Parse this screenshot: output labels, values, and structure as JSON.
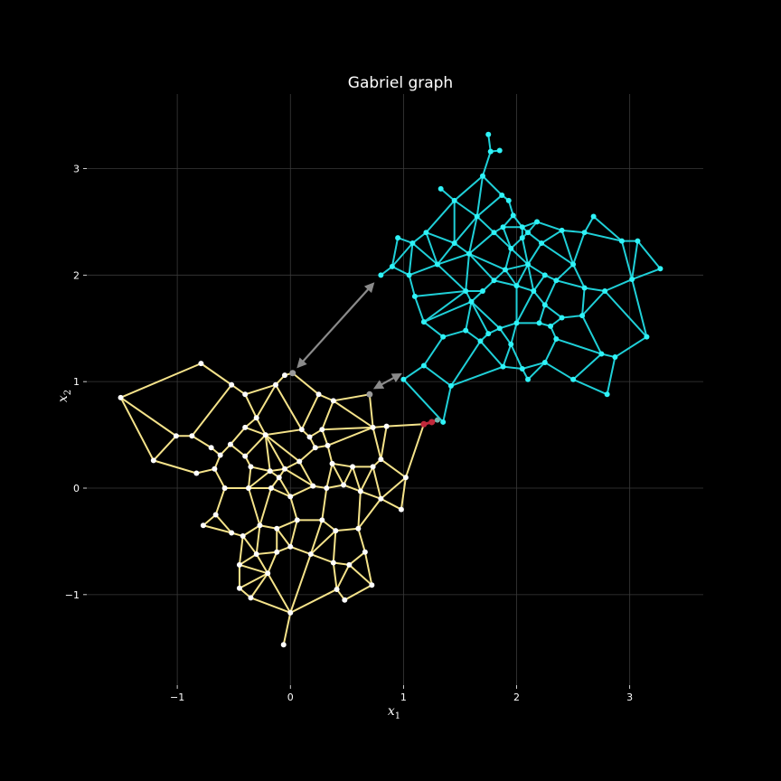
{
  "chart_data": {
    "type": "scatter",
    "title": "Gabriel graph",
    "xlabel": "x",
    "xlabel_sub": "1",
    "ylabel": "x",
    "ylabel_sub": "2",
    "xlim": [
      -1.8,
      3.65
    ],
    "ylim": [
      -1.85,
      3.7
    ],
    "xticks": [
      -1,
      0,
      1,
      2,
      3
    ],
    "xtick_labels": [
      "−1",
      "0",
      "1",
      "2",
      "3"
    ],
    "yticks": [
      -1,
      0,
      1,
      2,
      3
    ],
    "ytick_labels": [
      "−1",
      "0",
      "1",
      "2",
      "3"
    ],
    "grid": true,
    "colors": {
      "background": "#000000",
      "grid": "#3a3a3a",
      "cluster_a_edges": "#f5e38a",
      "cluster_a_nodes": "#ffffff",
      "cluster_b_edges": "#1fd0d8",
      "cluster_b_nodes": "#2ff3f8",
      "arrows": "#8a8a8a",
      "bridge": "#c0283a"
    },
    "series": [
      {
        "color": "#ffffff",
        "edge_color": "#f5e38a",
        "points": [
          [
            -1.5,
            0.85
          ],
          [
            -0.79,
            1.17
          ],
          [
            -1.01,
            0.49
          ],
          [
            -1.21,
            0.26
          ],
          [
            -0.87,
            0.49
          ],
          [
            -0.52,
            0.97
          ],
          [
            -0.4,
            0.88
          ],
          [
            -0.13,
            0.97
          ],
          [
            0.02,
            1.08
          ],
          [
            -0.05,
            1.06
          ],
          [
            0.25,
            0.88
          ],
          [
            0.38,
            0.82
          ],
          [
            0.7,
            0.88
          ],
          [
            0.85,
            0.58
          ],
          [
            0.73,
            0.57
          ],
          [
            1.18,
            0.6
          ],
          [
            0.17,
            0.48
          ],
          [
            0.28,
            0.55
          ],
          [
            -0.22,
            0.5
          ],
          [
            -0.4,
            0.57
          ],
          [
            -0.3,
            0.66
          ],
          [
            -0.53,
            0.41
          ],
          [
            -0.62,
            0.31
          ],
          [
            -0.7,
            0.38
          ],
          [
            -0.83,
            0.14
          ],
          [
            -0.67,
            0.18
          ],
          [
            -0.4,
            0.3
          ],
          [
            -0.18,
            0.16
          ],
          [
            -0.05,
            0.18
          ],
          [
            0.08,
            0.25
          ],
          [
            0.33,
            0.4
          ],
          [
            0.37,
            0.23
          ],
          [
            0.55,
            0.2
          ],
          [
            0.73,
            0.2
          ],
          [
            0.8,
            0.27
          ],
          [
            1.02,
            0.1
          ],
          [
            0.98,
            -0.2
          ],
          [
            0.8,
            -0.1
          ],
          [
            0.62,
            -0.03
          ],
          [
            0.47,
            0.03
          ],
          [
            0.32,
            0.0
          ],
          [
            0.2,
            0.02
          ],
          [
            0.0,
            -0.08
          ],
          [
            -0.17,
            0.0
          ],
          [
            -0.37,
            0.0
          ],
          [
            -0.58,
            0.0
          ],
          [
            -0.66,
            -0.25
          ],
          [
            -0.77,
            -0.35
          ],
          [
            -0.52,
            -0.42
          ],
          [
            -0.42,
            -0.45
          ],
          [
            -0.27,
            -0.35
          ],
          [
            -0.12,
            -0.38
          ],
          [
            0.06,
            -0.3
          ],
          [
            0.28,
            -0.3
          ],
          [
            0.4,
            -0.4
          ],
          [
            0.6,
            -0.38
          ],
          [
            0.66,
            -0.6
          ],
          [
            0.52,
            -0.72
          ],
          [
            0.38,
            -0.7
          ],
          [
            0.18,
            -0.62
          ],
          [
            0.0,
            -0.55
          ],
          [
            -0.12,
            -0.6
          ],
          [
            -0.3,
            -0.62
          ],
          [
            -0.45,
            -0.72
          ],
          [
            -0.45,
            -0.94
          ],
          [
            -0.35,
            -1.03
          ],
          [
            -0.2,
            -0.8
          ],
          [
            0.0,
            -1.17
          ],
          [
            -0.06,
            -1.47
          ],
          [
            0.41,
            -0.95
          ],
          [
            0.48,
            -1.05
          ],
          [
            0.72,
            -0.91
          ],
          [
            -0.1,
            0.1
          ],
          [
            -0.35,
            0.2
          ],
          [
            0.1,
            0.55
          ],
          [
            0.22,
            0.38
          ]
        ]
      },
      {
        "color": "#2ff3f8",
        "edge_color": "#1fd0d8",
        "points": [
          [
            1.75,
            3.32
          ],
          [
            1.85,
            3.17
          ],
          [
            1.77,
            3.16
          ],
          [
            1.7,
            2.93
          ],
          [
            1.33,
            2.81
          ],
          [
            1.45,
            2.7
          ],
          [
            1.87,
            2.75
          ],
          [
            1.93,
            2.7
          ],
          [
            1.97,
            2.56
          ],
          [
            2.05,
            2.45
          ],
          [
            2.1,
            2.4
          ],
          [
            2.18,
            2.5
          ],
          [
            2.22,
            2.3
          ],
          [
            2.4,
            2.42
          ],
          [
            2.68,
            2.55
          ],
          [
            2.93,
            2.32
          ],
          [
            3.27,
            2.06
          ],
          [
            3.07,
            2.32
          ],
          [
            3.02,
            1.96
          ],
          [
            3.15,
            1.42
          ],
          [
            2.87,
            1.23
          ],
          [
            2.75,
            1.26
          ],
          [
            2.5,
            1.02
          ],
          [
            2.8,
            0.88
          ],
          [
            2.1,
            1.02
          ],
          [
            2.05,
            1.12
          ],
          [
            1.88,
            1.14
          ],
          [
            1.68,
            1.38
          ],
          [
            1.55,
            1.48
          ],
          [
            1.35,
            1.42
          ],
          [
            1.18,
            1.15
          ],
          [
            1.42,
            0.96
          ],
          [
            1.35,
            0.62
          ],
          [
            1.0,
            1.02
          ],
          [
            0.8,
            2.0
          ],
          [
            0.9,
            2.08
          ],
          [
            0.95,
            2.35
          ],
          [
            1.08,
            2.3
          ],
          [
            1.2,
            2.4
          ],
          [
            1.05,
            2.0
          ],
          [
            1.1,
            1.8
          ],
          [
            1.18,
            1.56
          ],
          [
            1.3,
            2.1
          ],
          [
            1.45,
            2.3
          ],
          [
            1.58,
            2.2
          ],
          [
            1.65,
            2.55
          ],
          [
            1.8,
            2.4
          ],
          [
            1.95,
            2.25
          ],
          [
            2.1,
            2.1
          ],
          [
            2.25,
            2.0
          ],
          [
            2.35,
            1.95
          ],
          [
            2.6,
            1.88
          ],
          [
            2.78,
            1.85
          ],
          [
            2.58,
            1.62
          ],
          [
            2.4,
            1.6
          ],
          [
            2.3,
            1.52
          ],
          [
            2.2,
            1.55
          ],
          [
            2.0,
            1.55
          ],
          [
            1.85,
            1.5
          ],
          [
            1.75,
            1.45
          ],
          [
            1.6,
            1.75
          ],
          [
            1.55,
            1.85
          ],
          [
            1.7,
            1.85
          ],
          [
            1.8,
            1.95
          ],
          [
            1.9,
            2.05
          ],
          [
            2.0,
            1.9
          ],
          [
            2.15,
            1.85
          ],
          [
            2.25,
            1.72
          ],
          [
            1.95,
            1.35
          ],
          [
            2.25,
            1.18
          ],
          [
            2.35,
            1.4
          ],
          [
            2.6,
            2.4
          ],
          [
            2.5,
            2.1
          ],
          [
            2.05,
            2.35
          ],
          [
            1.88,
            2.45
          ]
        ]
      }
    ],
    "annotations": [
      {
        "type": "arrow",
        "from": [
          0.02,
          1.08
        ],
        "to": [
          0.78,
          1.97
        ]
      },
      {
        "type": "arrow",
        "from": [
          0.7,
          0.88
        ],
        "to": [
          1.02,
          1.12
        ]
      },
      {
        "type": "bridge",
        "points": [
          [
            1.18,
            0.6
          ],
          [
            1.25,
            0.62
          ],
          [
            1.3,
            0.64
          ]
        ]
      }
    ]
  }
}
